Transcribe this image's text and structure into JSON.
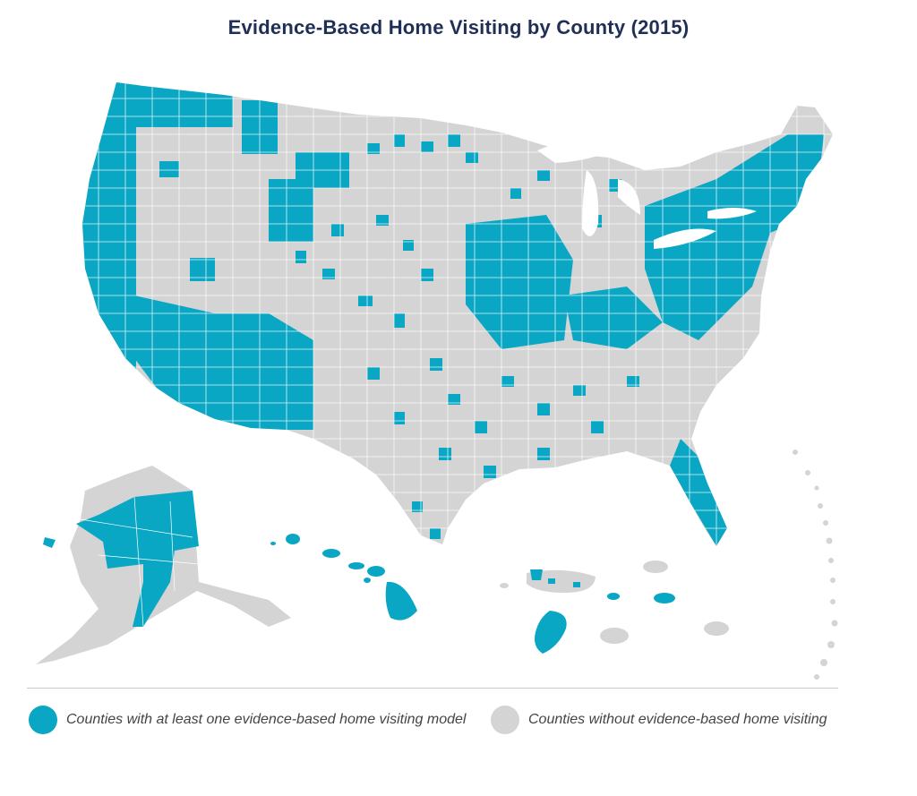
{
  "title": "Evidence-Based Home Visiting by County (2015)",
  "colors": {
    "with_model": "#0aa7c4",
    "without": "#d4d4d4",
    "border": "#ffffff",
    "title": "#1f2f56"
  },
  "legend": {
    "with": {
      "label": "Counties with at least one evidence-based home visiting model",
      "color": "#0aa7c4"
    },
    "without": {
      "label": "Counties without evidence-based home visiting",
      "color": "#d4d4d4"
    }
  },
  "regions": [
    {
      "name": "contiguous-us",
      "fill": "without"
    },
    {
      "name": "alaska",
      "fill": "without"
    },
    {
      "name": "hawaii",
      "fill": "with_model"
    },
    {
      "name": "puerto-rico",
      "fill": "without"
    },
    {
      "name": "us-virgin-islands",
      "fill": "with_model"
    },
    {
      "name": "guam",
      "fill": "with_model"
    },
    {
      "name": "northern-mariana-islands",
      "fill": "without"
    }
  ]
}
